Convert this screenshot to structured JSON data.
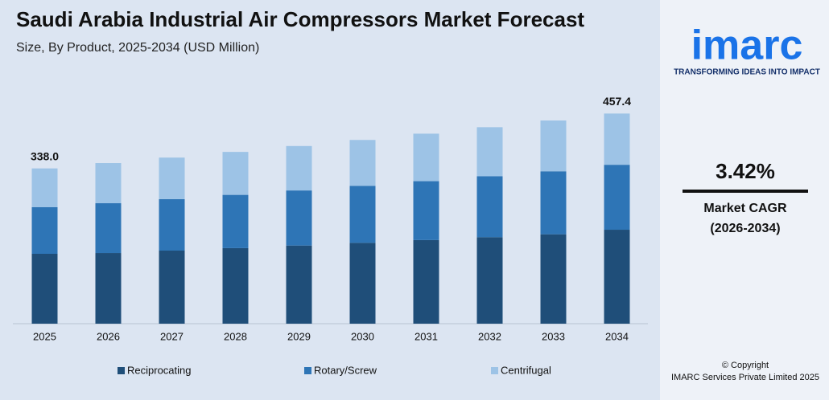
{
  "chart_data": {
    "type": "stacked_bar",
    "title": "Saudi Arabia Industrial Air Compressors Market Forecast",
    "subtitle": "Size, By Product, 2025-2034 (USD Million)",
    "categories": [
      "2025",
      "2026",
      "2027",
      "2028",
      "2029",
      "2030",
      "2031",
      "2032",
      "2033",
      "2034"
    ],
    "series": [
      {
        "name": "Reciprocating",
        "color": "#1f4e79",
        "values": [
          152.1,
          153.8,
          159.1,
          164.5,
          170.1,
          176.0,
          182.0,
          188.2,
          194.6,
          204.5
        ]
      },
      {
        "name": "Rotary/Screw",
        "color": "#2e75b6",
        "values": [
          101.4,
          108.4,
          112.1,
          115.9,
          119.9,
          124.0,
          128.2,
          132.6,
          137.1,
          141.4
        ]
      },
      {
        "name": "Centrifugal",
        "color": "#9dc3e6",
        "values": [
          84.5,
          87.4,
          90.3,
          93.5,
          96.7,
          99.9,
          103.4,
          106.9,
          110.6,
          111.5
        ]
      }
    ],
    "totals": {
      "values": [
        338.0,
        null,
        null,
        null,
        null,
        null,
        null,
        null,
        null,
        457.4
      ],
      "value_labels": [
        "338.0",
        null,
        null,
        null,
        null,
        null,
        null,
        null,
        null,
        "457.4"
      ]
    },
    "ylim": [
      0,
      500
    ],
    "legend": "bottom"
  },
  "sidebar": {
    "logo": "imarc",
    "tagline": "TRANSFORMING IDEAS INTO IMPACT",
    "cagr": "3.42%",
    "cagr_label": "Market CAGR",
    "cagr_period": "(2026-2034)",
    "copyright": "© Copyright",
    "company": "IMARC Services Private Limited 2025"
  }
}
